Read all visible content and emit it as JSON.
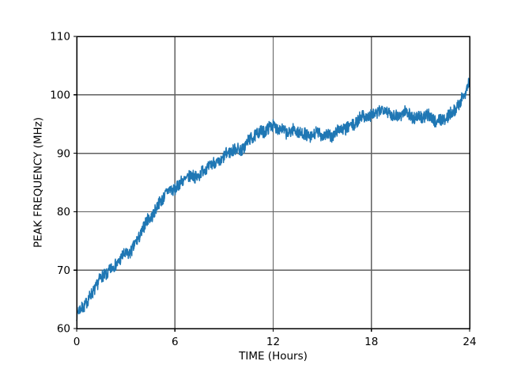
{
  "figure": {
    "background_color": "#ffffff"
  },
  "chart_data": {
    "type": "line",
    "title": "",
    "xlabel": "TIME (Hours)",
    "ylabel": "PEAK FREQUENCY (MHz)",
    "xlim": [
      0,
      24
    ],
    "ylim": [
      60,
      110
    ],
    "x_ticks": [
      0,
      6,
      12,
      18,
      24
    ],
    "y_ticks": [
      60,
      70,
      80,
      90,
      100,
      110
    ],
    "grid": true,
    "legend": false,
    "grid_color": "#5f5f5f",
    "axis_color": "#000000",
    "line_color": "#1f77b4",
    "series": [
      {
        "name": "peak-frequency",
        "keypoints_t_hours": [
          0.0,
          0.5,
          1.0,
          1.5,
          2.0,
          2.5,
          3.0,
          3.5,
          4.0,
          4.5,
          5.0,
          5.5,
          6.0,
          6.5,
          7.0,
          7.5,
          8.0,
          8.5,
          9.0,
          9.5,
          10.0,
          10.5,
          11.0,
          11.5,
          12.0,
          12.5,
          13.0,
          13.5,
          14.0,
          14.5,
          15.0,
          15.5,
          16.0,
          16.5,
          17.0,
          17.5,
          18.0,
          18.5,
          19.0,
          19.5,
          20.0,
          20.5,
          21.0,
          21.5,
          22.0,
          22.5,
          23.0,
          23.33,
          23.67,
          24.0
        ],
        "keypoints_mhz": [
          62.0,
          64.3,
          66.4,
          68.4,
          70.2,
          71.2,
          72.5,
          74.2,
          76.5,
          79.3,
          81.3,
          83.0,
          84.3,
          85.2,
          85.9,
          86.6,
          87.4,
          88.4,
          89.4,
          90.3,
          90.9,
          91.9,
          93.2,
          94.3,
          94.4,
          94.1,
          93.8,
          93.5,
          93.3,
          93.0,
          93.2,
          93.2,
          93.6,
          94.4,
          95.3,
          96.1,
          96.6,
          97.3,
          97.1,
          96.6,
          96.8,
          96.4,
          96.3,
          96.0,
          95.9,
          95.8,
          96.8,
          98.8,
          99.9,
          102.6
        ],
        "noise_amplitude_mhz": 1.05,
        "n_points": 1440
      }
    ]
  }
}
